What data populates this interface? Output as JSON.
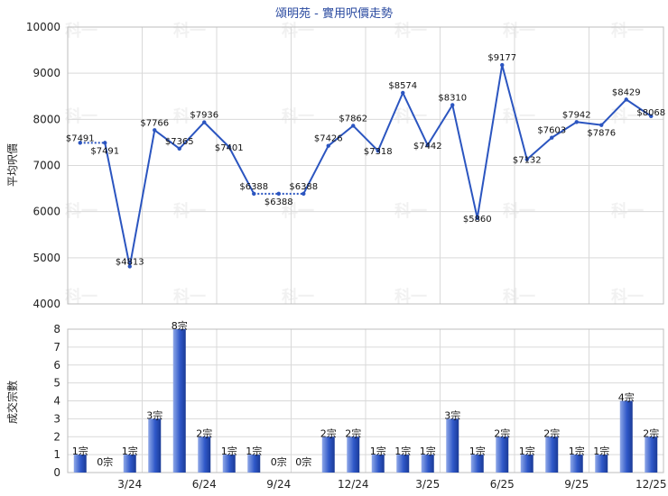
{
  "chart_data": [
    {
      "type": "line",
      "title": "頌明苑 - 實用呎價走勢",
      "ylabel": "平均呎價",
      "ylim": [
        4000,
        10000
      ],
      "yticks": [
        4000,
        5000,
        6000,
        7000,
        8000,
        9000,
        10000
      ],
      "x": [
        "2024-01",
        "2024-02",
        "2024-03",
        "2024-04",
        "2024-05",
        "2024-06",
        "2024-07",
        "2024-08",
        "2024-09",
        "2024-10",
        "2024-11",
        "2024-12",
        "2025-01",
        "2025-02",
        "2025-03",
        "2025-04",
        "2025-05",
        "2025-06",
        "2025-07",
        "2025-08",
        "2025-09",
        "2025-10",
        "2025-11",
        "2025-12"
      ],
      "values": [
        7491,
        7491,
        4813,
        7766,
        7365,
        7936,
        7401,
        6388,
        6388,
        6388,
        7426,
        7862,
        7318,
        8574,
        7442,
        8310,
        5860,
        9177,
        7132,
        7603,
        7942,
        7876,
        8429,
        8068
      ],
      "labels": [
        "$7491",
        "$7491",
        "$4813",
        "$7766",
        "$7365",
        "$7936",
        "$7401",
        "$6388",
        "$6388",
        "$6388",
        "$7426",
        "$7862",
        "$7318",
        "$8574",
        "$7442",
        "$8310",
        "$5860",
        "$9177",
        "$7132",
        "$7603",
        "$7942",
        "$7876",
        "$8429",
        "$8068"
      ],
      "carried_forward": [
        false,
        true,
        false,
        false,
        false,
        false,
        false,
        false,
        true,
        true,
        false,
        false,
        false,
        false,
        false,
        false,
        false,
        false,
        false,
        false,
        false,
        false,
        false,
        false
      ],
      "xtick_labels": [
        "3/24",
        "6/24",
        "9/24",
        "12/24",
        "3/25",
        "6/25",
        "9/25",
        "12/25"
      ],
      "grid": true,
      "line_color": "#2b55c0"
    },
    {
      "type": "bar",
      "ylabel": "成交宗數",
      "ylim": [
        0,
        8
      ],
      "yticks": [
        0,
        1,
        2,
        3,
        4,
        5,
        6,
        7,
        8
      ],
      "values": [
        1,
        0,
        1,
        3,
        8,
        2,
        1,
        1,
        0,
        0,
        2,
        2,
        1,
        1,
        1,
        3,
        1,
        2,
        1,
        2,
        1,
        1,
        4,
        2
      ],
      "labels": [
        "1宗",
        "0宗",
        "1宗",
        "3宗",
        "8宗",
        "2宗",
        "1宗",
        "1宗",
        "0宗",
        "0宗",
        "2宗",
        "2宗",
        "1宗",
        "1宗",
        "1宗",
        "3宗",
        "1宗",
        "2宗",
        "1宗",
        "2宗",
        "1宗",
        "1宗",
        "4宗",
        "2宗"
      ],
      "xtick_labels": [
        "3/24",
        "6/24",
        "9/24",
        "12/24",
        "3/25",
        "6/25",
        "9/25",
        "12/25"
      ],
      "grid": true,
      "bar_color": "#2f58c8"
    }
  ],
  "watermark": "科一"
}
